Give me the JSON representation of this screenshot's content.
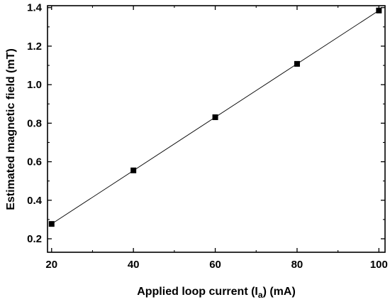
{
  "chart_data": {
    "type": "scatter",
    "title": "",
    "xlabel": {
      "prefix": "Applied loop current (I",
      "subscript": "a",
      "suffix": ") (mA)"
    },
    "ylabel": "Estimated magnetic field (mT)",
    "xlim": [
      19,
      101.5
    ],
    "ylim": [
      0.13,
      1.41
    ],
    "xticks": [
      20,
      40,
      60,
      80,
      100
    ],
    "yticks": [
      0.2,
      0.4,
      0.6,
      0.8,
      1.0,
      1.2,
      1.4
    ],
    "xtick_labels": [
      "20",
      "40",
      "60",
      "80",
      "100"
    ],
    "ytick_labels": [
      "0.2",
      "0.4",
      "0.6",
      "0.8",
      "1.0",
      "1.2",
      "1.4"
    ],
    "series": [
      {
        "marker": "square",
        "color": "#000000",
        "x": [
          20,
          40,
          60,
          80,
          100
        ],
        "y": [
          0.277,
          0.555,
          0.831,
          1.108,
          1.385
        ]
      }
    ],
    "fit_line": {
      "x": [
        20,
        100
      ],
      "y": [
        0.277,
        1.385
      ],
      "color": "#000000"
    },
    "grid": false,
    "legend": "none"
  }
}
